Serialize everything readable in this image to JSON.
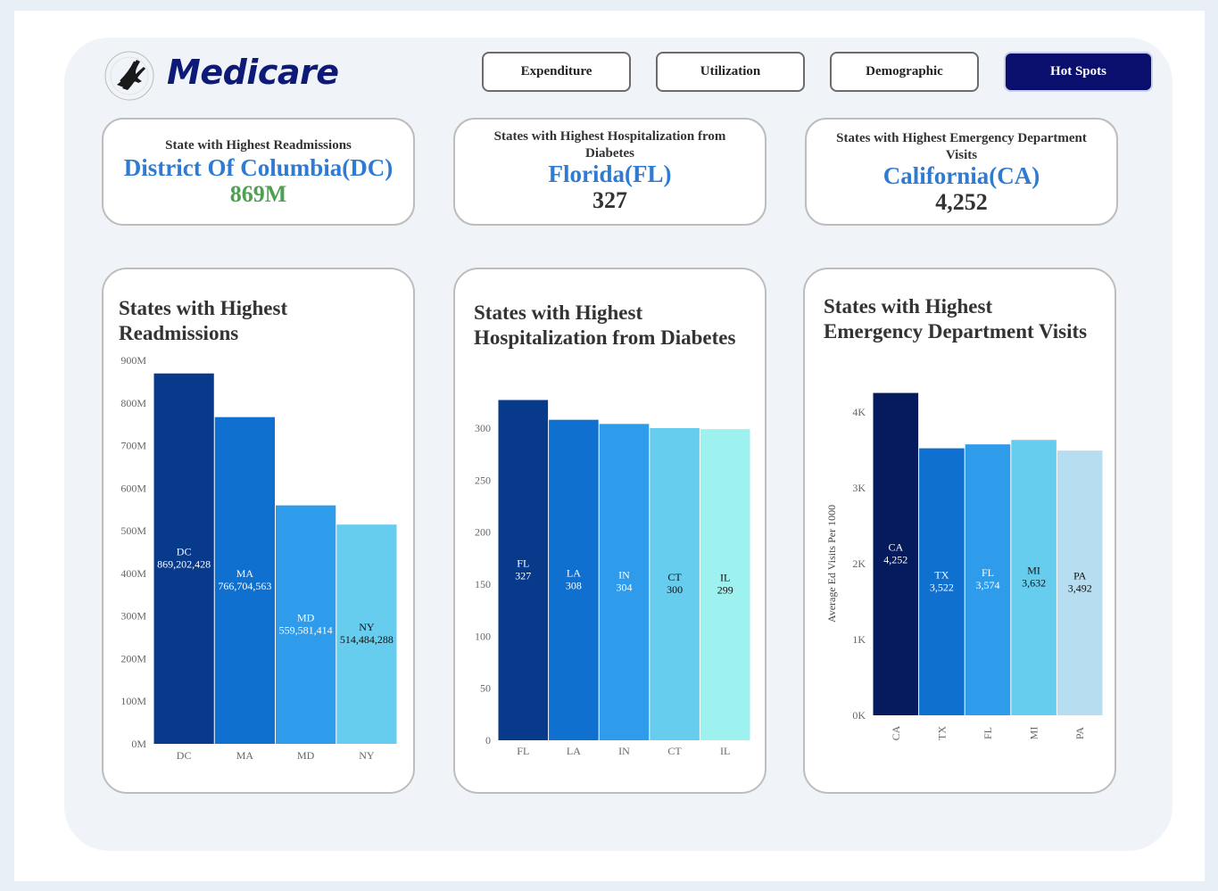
{
  "app": {
    "brand": "Medicare",
    "seal_text": "DEPARTMENT OF HEALTH & HUMAN SERVICES · USA"
  },
  "nav": [
    {
      "label": "Expenditure",
      "active": false
    },
    {
      "label": "Utilization",
      "active": false
    },
    {
      "label": "Demographic",
      "active": false
    },
    {
      "label": "Hot Spots",
      "active": true
    }
  ],
  "kpis": [
    {
      "title": "State with Highest Readmissions",
      "name": "District Of Columbia(DC)",
      "value": "869M",
      "value_color": "#4fa051"
    },
    {
      "title": "States with Highest Hospitalization from Diabetes",
      "name": "Florida(FL)",
      "value": "327",
      "value_color": "#333333"
    },
    {
      "title": "States with Highest Emergency Department Visits",
      "name": "California(CA)",
      "value": "4,252",
      "value_color": "#333333"
    }
  ],
  "charts": [
    {
      "title": "States with Highest Readmissions",
      "chart_data": {
        "type": "bar",
        "categories": [
          "DC",
          "MA",
          "MD",
          "NY"
        ],
        "values": [
          869202428,
          766704563,
          559581414,
          514484288
        ],
        "value_labels": [
          "869,202,428",
          "766,704,563",
          "559,581,414",
          "514,484,288"
        ],
        "ylim": [
          0,
          900000000
        ],
        "yticks": [
          0,
          100000000,
          200000000,
          300000000,
          400000000,
          500000000,
          600000000,
          700000000,
          800000000,
          900000000
        ],
        "yticklabels": [
          "0M",
          "100M",
          "200M",
          "300M",
          "400M",
          "500M",
          "600M",
          "700M",
          "800M",
          "900M"
        ],
        "colors": [
          "#083a8c",
          "#0f70d0",
          "#2e9cea",
          "#66cdef"
        ],
        "label_colors": [
          "#ffffff",
          "#ffffff",
          "#ffffff",
          "#111111"
        ],
        "ylabel": "",
        "xlabel": ""
      }
    },
    {
      "title": "States with Highest Hospitalization from Diabetes",
      "chart_data": {
        "type": "bar",
        "categories": [
          "FL",
          "LA",
          "IN",
          "CT",
          "IL"
        ],
        "values": [
          327,
          308,
          304,
          300,
          299
        ],
        "value_labels": [
          "327",
          "308",
          "304",
          "300",
          "299"
        ],
        "ylim": [
          0,
          300
        ],
        "yticks": [
          0,
          50,
          100,
          150,
          200,
          250,
          300
        ],
        "yticklabels": [
          "0",
          "50",
          "100",
          "150",
          "200",
          "250",
          "300"
        ],
        "colors": [
          "#083a8c",
          "#0f70d0",
          "#2e9cea",
          "#66cdef",
          "#9df1ee"
        ],
        "label_colors": [
          "#ffffff",
          "#ffffff",
          "#ffffff",
          "#111111",
          "#111111"
        ],
        "ylabel": "",
        "xlabel": ""
      }
    },
    {
      "title": "States with Highest Emergency Department Visits",
      "chart_data": {
        "type": "bar",
        "categories": [
          "CA",
          "TX",
          "FL",
          "MI",
          "PA"
        ],
        "values": [
          4252,
          3522,
          3574,
          3632,
          3492
        ],
        "value_labels": [
          "4,252",
          "3,522",
          "3,574",
          "3,632",
          "3,492"
        ],
        "ylim": [
          0,
          4000
        ],
        "yticks": [
          0,
          1000,
          2000,
          3000,
          4000
        ],
        "yticklabels": [
          "0K",
          "1K",
          "2K",
          "3K",
          "4K"
        ],
        "colors": [
          "#061b5e",
          "#0f70d0",
          "#2e9cea",
          "#66cdef",
          "#b7def0"
        ],
        "label_colors": [
          "#ffffff",
          "#ffffff",
          "#ffffff",
          "#111111",
          "#111111"
        ],
        "ylabel": "Average Ed Visits Per 1000",
        "xlabel": ""
      }
    }
  ]
}
